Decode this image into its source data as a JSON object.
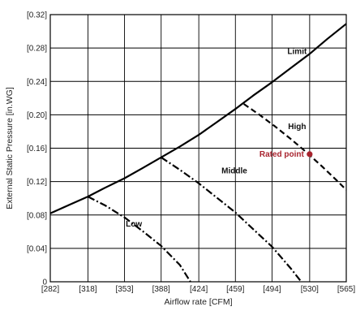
{
  "chart_data": {
    "type": "line",
    "xlabel": "Airflow rate  [CFM]",
    "ylabel": "External Static Pressure  [in.WG]",
    "x_tick_labels": [
      "[282]",
      "[318]",
      "[353]",
      "[388]",
      "[424]",
      "[459]",
      "[494]",
      "[530]",
      "[565]"
    ],
    "x_ticks": [
      282,
      318,
      353,
      388,
      424,
      459,
      494,
      530,
      565
    ],
    "y_tick_labels": [
      "0",
      "[0.04]",
      "[0.08]",
      "[0.12]",
      "[0.16]",
      "[0.20]",
      "[0.24]",
      "[0.28]",
      "[0.32]"
    ],
    "y_ticks": [
      0,
      0.04,
      0.08,
      0.12,
      0.16,
      0.2,
      0.24,
      0.28,
      0.32
    ],
    "xlim": [
      282,
      565
    ],
    "ylim": [
      0,
      0.32
    ],
    "grid": true,
    "series": [
      {
        "name": "Limit",
        "style": "solid",
        "color": "#000000",
        "x": [
          282,
          300,
          318,
          335,
          353,
          370,
          388,
          406,
          424,
          441,
          459,
          476,
          494,
          512,
          530,
          547,
          565
        ],
        "y": [
          0.082,
          0.092,
          0.102,
          0.113,
          0.124,
          0.136,
          0.149,
          0.162,
          0.176,
          0.191,
          0.207,
          0.223,
          0.239,
          0.256,
          0.273,
          0.291,
          0.309
        ]
      },
      {
        "name": "High",
        "style": "dashed",
        "color": "#000000",
        "x": [
          467,
          482,
          497,
          512,
          527,
          542,
          557,
          565
        ],
        "y": [
          0.213,
          0.2,
          0.186,
          0.171,
          0.155,
          0.138,
          0.12,
          0.11
        ]
      },
      {
        "name": "Middle",
        "style": "dashdot",
        "color": "#000000",
        "x": [
          388,
          406,
          424,
          441,
          459,
          476,
          494,
          512,
          522
        ],
        "y": [
          0.149,
          0.134,
          0.118,
          0.101,
          0.083,
          0.063,
          0.042,
          0.016,
          0.0
        ]
      },
      {
        "name": "Low",
        "style": "dashdot",
        "color": "#000000",
        "x": [
          318,
          335,
          353,
          370,
          388,
          406,
          416
        ],
        "y": [
          0.102,
          0.091,
          0.077,
          0.061,
          0.043,
          0.02,
          0.0
        ]
      }
    ],
    "annotations": [
      {
        "text": "Limit",
        "x": 518,
        "y": 0.273
      },
      {
        "text": "High",
        "x": 518,
        "y": 0.183
      },
      {
        "text": "Middle",
        "x": 458,
        "y": 0.13
      },
      {
        "text": "Low",
        "x": 362,
        "y": 0.066
      }
    ],
    "rated_point": {
      "label": "Rated point",
      "x": 530,
      "y": 0.147,
      "color": "#a8232e"
    }
  }
}
